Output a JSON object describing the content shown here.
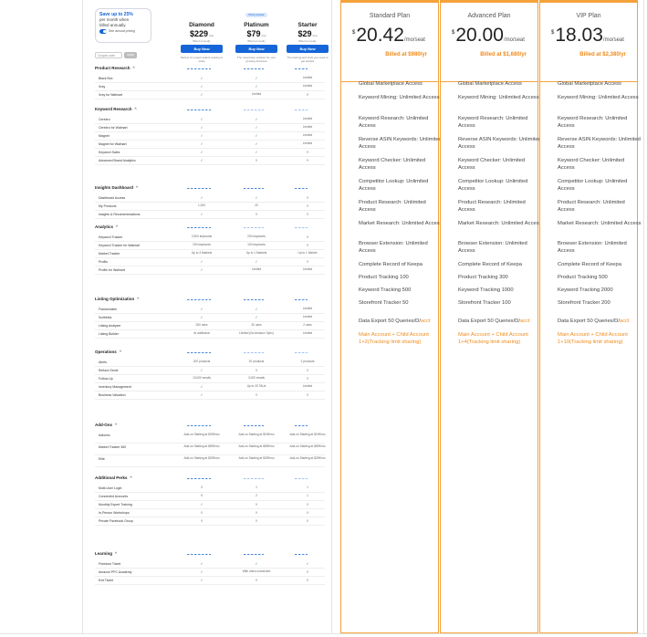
{
  "promo": {
    "title": "Save up to 25%",
    "line2": "per month when",
    "line3": "billed annually.",
    "toggle_label": "See annual pricing"
  },
  "coupon": {
    "placeholder": "Coupon code",
    "apply": "Apply"
  },
  "plans_left": [
    {
      "popular": "",
      "name": "Diamond",
      "price": "$229",
      "per": "/mo",
      "billed": "Billed annually",
      "buy": "Buy Now",
      "desc": "Perfect for expert sellers looking to scale"
    },
    {
      "popular": "Most popular",
      "name": "Platinum",
      "price": "$79",
      "per": "/mo",
      "billed": "Billed annually",
      "buy": "Buy Now",
      "desc": "The must-have solution for your growing business"
    },
    {
      "popular": "",
      "name": "Starter",
      "price": "$29",
      "per": "/mo",
      "billed": "Billed annually",
      "buy": "Buy Now",
      "desc": "The training and tools you need to get started"
    }
  ],
  "sections": [
    {
      "title": "Product Research",
      "rows": [
        {
          "label": "Black Box",
          "v": [
            "✓",
            "✓",
            "Limited"
          ]
        },
        {
          "label": "Xray",
          "v": [
            "✓",
            "✓",
            "Limited"
          ]
        },
        {
          "label": "Xray for Walmart",
          "v": [
            "✓",
            "Limited",
            "✕"
          ]
        }
      ]
    },
    {
      "title": "Keyword Research",
      "rows": [
        {
          "label": "Cerebro",
          "v": [
            "✓",
            "✓",
            "Limited"
          ]
        },
        {
          "label": "Cerebro for Walmart",
          "v": [
            "✓",
            "✓",
            "Limited"
          ]
        },
        {
          "label": "Magnet",
          "v": [
            "✓",
            "✓",
            "Limited"
          ]
        },
        {
          "label": "Magnet for Walmart",
          "v": [
            "✓",
            "✓",
            "Limited"
          ]
        },
        {
          "label": "Keyword Sales",
          "v": [
            "✓",
            "✓",
            "✕"
          ]
        },
        {
          "label": "Advanced Brand Analytics",
          "v": [
            "✓",
            "✕",
            "✕"
          ]
        }
      ]
    },
    {
      "title": "Insights Dashboard",
      "rows": [
        {
          "label": "Dashboard Access",
          "v": [
            "✓",
            "✓",
            "✕"
          ]
        },
        {
          "label": "My Products",
          "v": [
            "1,000",
            "20",
            "✕"
          ]
        },
        {
          "label": "Insights & Recommendations",
          "v": [
            "✓",
            "✕",
            "✕"
          ]
        }
      ]
    },
    {
      "title": "Analytics",
      "rows": [
        {
          "label": "Keyword Tracker",
          "v": [
            "2,500 keywords",
            "200 keywords",
            "✕"
          ]
        },
        {
          "label": "Keyword Tracker for Walmart",
          "v": [
            "200 keywords",
            "100 keywords",
            "✕"
          ]
        },
        {
          "label": "Market Tracker",
          "v": [
            "Up to 3 Markets",
            "Up to 1 Markets",
            "Up to 1 Market"
          ]
        },
        {
          "label": "Profits",
          "v": [
            "✓",
            "✓",
            "✕"
          ]
        },
        {
          "label": "Profits for Walmart",
          "v": [
            "✓",
            "Limited",
            "Limited"
          ]
        }
      ]
    },
    {
      "title": "Listing Optimization",
      "rows": [
        {
          "label": "Frankenstein",
          "v": [
            "✓",
            "✓",
            "Limited"
          ]
        },
        {
          "label": "Scribbles",
          "v": [
            "✓",
            "✓",
            "Limited"
          ]
        },
        {
          "label": "Listing Analyzer",
          "v": [
            "250 uses",
            "30 uses",
            "2 uses"
          ]
        },
        {
          "label": "Listing Builder",
          "v": [
            "AI additional",
            "Limited (No Amazon Sync)",
            "Limited"
          ]
        }
      ]
    },
    {
      "title": "Operations",
      "rows": [
        {
          "label": "Alerts",
          "v": [
            "200 products",
            "20 products",
            "2 products"
          ]
        },
        {
          "label": "Refund Genie",
          "v": [
            "✓",
            "✕",
            "✕"
          ]
        },
        {
          "label": "Follow-Up",
          "v": [
            "10,000 emails",
            "3,000 emails",
            "✕"
          ]
        },
        {
          "label": "Inventory Management",
          "v": [
            "✓",
            "Up to 30 TAUs",
            "Limited"
          ]
        },
        {
          "label": "Business Valuation",
          "v": [
            "✓",
            "✕",
            "✕"
          ]
        }
      ]
    },
    {
      "title": "Add-Ons",
      "rows": [
        {
          "label": "Adtomic",
          "v": [
            "Add-on Starting at $299/mo",
            "Add-on Starting at $199/mo",
            "Add-on Starting at $199/mo"
          ]
        },
        {
          "label": "Market Tracker 360",
          "v": [
            "Add-on Starting at $599/mo",
            "Add-on Starting at $599/mo",
            "Add-on Starting at $599/mo"
          ]
        },
        {
          "label": "Elite",
          "v": [
            "Add-on Starting at $299/mo",
            "Add-on Starting at $299/mo",
            "Add-on Starting at $299/mo"
          ]
        }
      ]
    },
    {
      "title": "Additional Perks",
      "rows": [
        {
          "label": "Multi-User Login",
          "v": [
            "3",
            "1",
            "1"
          ]
        },
        {
          "label": "Connected Accounts",
          "v": [
            "5",
            "2",
            "1"
          ]
        },
        {
          "label": "Monthly Expert Training",
          "v": [
            "✓",
            "✕",
            "✕"
          ]
        },
        {
          "label": "In-Person Workshops",
          "v": [
            "✕",
            "✕",
            "✕"
          ]
        },
        {
          "label": "Private Facebook Group",
          "v": [
            "✕",
            "✕",
            "✕"
          ]
        }
      ]
    },
    {
      "title": "Learning",
      "rows": [
        {
          "label": "Freedom Ticket",
          "v": [
            "✓",
            "✓",
            "✓"
          ]
        },
        {
          "label": "Amazon PPC Academy",
          "v": [
            "✓",
            "With video connected",
            "✕"
          ]
        },
        {
          "label": "Exit Ticket",
          "v": [
            "✓",
            "✕",
            "✕"
          ]
        }
      ]
    }
  ],
  "plans_right": [
    {
      "name": "Standard Plan",
      "currency": "$",
      "price": "20.42",
      "unit": "/mo/seat",
      "billed": "Billed at $980/yr",
      "features": [
        "Global Marketplace Access",
        "Keyword Mining: Unlimited Access",
        "Keyword Research: Unlimited Access",
        "Reverse ASIN Keywords: Unlimited Access",
        "Keyword Checker: Unlimited Access",
        "Competitor Lookup: Unlimited Access",
        "Product Research: Unlimited Access",
        "Market Research: Unlimited Access",
        "Browser Extension: Unlimited Access",
        "Complete Record of Keepa",
        "Product Tracking 100",
        "Keyword Tracking 500",
        "Storefront Tracker 50"
      ],
      "export": "Data Export 50 Queries/D/",
      "export_unit": "acct",
      "account": "Main Account + Child Account 1+2(Tracking limit sharing)"
    },
    {
      "name": "Advanced Plan",
      "currency": "$",
      "price": "20.00",
      "unit": "/mo/seat",
      "billed": "Billed at $1,680/yr",
      "features": [
        "Global Marketplace Access",
        "Keyword Mining: Unlimited Access",
        "Keyword Research: Unlimited Access",
        "Reverse ASIN Keywords: Unlimited Access",
        "Keyword Checker: Unlimited Access",
        "Competitor Lookup: Unlimited Access",
        "Product Research: Unlimited Access",
        "Market Research: Unlimited Access",
        "Browser Extension: Unlimited Access",
        "Complete Record of Keepa",
        "Product Tracking 300",
        "Keyword Tracking 1000",
        "Storefront Tracker 100"
      ],
      "export": "Data Export 50 Queries/D/",
      "export_unit": "acct",
      "account": "Main Account + Child Account 1+4(Tracking limit sharing)"
    },
    {
      "name": "VIP Plan",
      "currency": "$",
      "price": "18.03",
      "unit": "/mo/seat",
      "billed": "Billed at $2,380/yr",
      "features": [
        "Global Marketplace Access",
        "Keyword Mining: Unlimited Access",
        "Keyword Research: Unlimited Access",
        "Reverse ASIN Keywords: Unlimited Access",
        "Keyword Checker: Unlimited Access",
        "Competitor Lookup: Unlimited Access",
        "Product Research: Unlimited Access",
        "Market Research: Unlimited Access",
        "Browser Extension: Unlimited Access",
        "Complete Record of Keepa",
        "Product Tracking 500",
        "Keyword Tracking 2000",
        "Storefront Tracker 200"
      ],
      "export": "Data Export 50 Queries/D/",
      "export_unit": "acct",
      "account": "Main Account + Child Account 1+10(Tracking limit sharing)"
    }
  ]
}
